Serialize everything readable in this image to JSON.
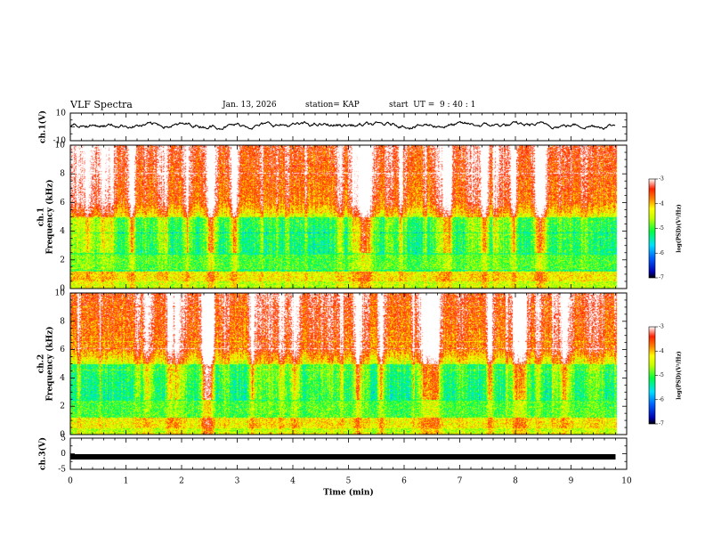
{
  "header": {
    "title": "VLF Spectra",
    "date": "Jan. 13, 2026",
    "station": "station= KAP",
    "start_time": "start  UT =  9 : 40 : 1"
  },
  "chart_data": [
    {
      "type": "line",
      "name": "ch1-waveform",
      "ylabel": "ch.1(V)",
      "ylim": [
        -10,
        10
      ],
      "yticks": [
        "10",
        "-10"
      ],
      "xlim": [
        0,
        10
      ],
      "description_of_trace": "noisy signal fluctuating roughly between -3 and 5 V",
      "typical_range": [
        -3,
        5
      ]
    },
    {
      "type": "heatmap",
      "name": "ch1-spectrogram",
      "ylabel": "ch.1\nFrequency (kHz)",
      "ylabel_line1": "ch.1",
      "ylabel_line2": "Frequency (kHz)",
      "ylim": [
        0,
        10
      ],
      "yticks": [
        "0",
        "2",
        "4",
        "6",
        "8",
        "10"
      ],
      "xlim": [
        0,
        10
      ],
      "data_end_min": 9.8,
      "colorbar": {
        "label": "log(PSD)(V²/Hz)",
        "range": [
          -7,
          -3
        ],
        "ticks": [
          "-3",
          "-4",
          "-5",
          "-6",
          "-7"
        ]
      }
    },
    {
      "type": "heatmap",
      "name": "ch2-spectrogram",
      "ylabel_line1": "ch.2",
      "ylabel_line2": "Frequency (kHz)",
      "ylim": [
        0,
        10
      ],
      "yticks": [
        "0",
        "2",
        "4",
        "6",
        "8",
        "10"
      ],
      "xlim": [
        0,
        10
      ],
      "data_end_min": 9.8,
      "colorbar": {
        "label": "log(PSD)(V²/Hz)",
        "range": [
          -7,
          -3
        ],
        "ticks": [
          "-3",
          "-4",
          "-5",
          "-6",
          "-7"
        ]
      }
    },
    {
      "type": "line",
      "name": "ch3-waveform",
      "ylabel": "ch.3(V)",
      "ylim": [
        -5,
        5
      ],
      "yticks": [
        "5",
        "0",
        "-5"
      ],
      "xlim": [
        0,
        10
      ],
      "level": -1.0
    }
  ],
  "xaxis": {
    "label": "Time (min)",
    "ticks": [
      "0",
      "1",
      "2",
      "3",
      "4",
      "5",
      "6",
      "7",
      "8",
      "9",
      "10"
    ]
  }
}
